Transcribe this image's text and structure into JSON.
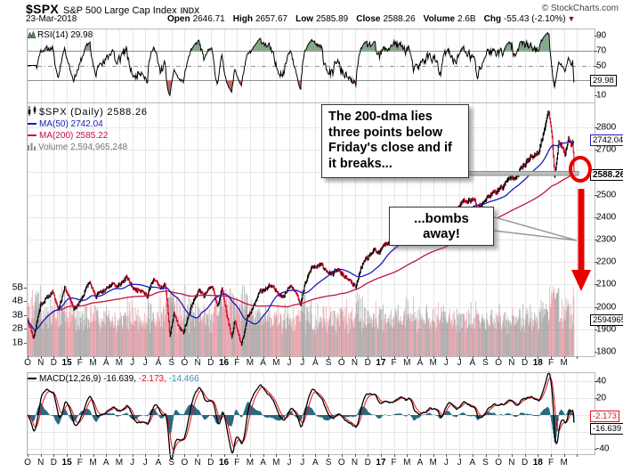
{
  "header": {
    "symbol": "$SPX",
    "name": "S&P 500 Large Cap Index",
    "exchange": "INDX",
    "source": "© StockCharts.com",
    "date": "23-Mar-2018",
    "quote": {
      "open_label": "Open",
      "open": "2646.71",
      "high_label": "High",
      "high": "2657.67",
      "low_label": "Low",
      "low": "2585.89",
      "close_label": "Close",
      "close": "2588.26",
      "volume_label": "Volume",
      "volume": "2.6B",
      "chg_label": "Chg",
      "chg": "-55.43 (-2.10%)",
      "chg_arrow": "▼"
    }
  },
  "rsi_pane": {
    "label": "RSI(14)",
    "value": "29.98",
    "value_box": "29.98",
    "ticks": [
      90,
      70,
      50,
      10
    ]
  },
  "main_pane": {
    "series_label": "$SPX (Daily) 2588.26",
    "ma50_label": "MA(50) 2742.04",
    "ma200_label": "MA(200) 2585.22",
    "volume_label": "Volume 2,594,965,248",
    "price_ticks": [
      2800,
      2700,
      2500,
      2400,
      2300,
      2200,
      2100,
      2000,
      1900,
      1800
    ],
    "volume_ticks": [
      "5B",
      "4B",
      "3B",
      "2B",
      "1B"
    ],
    "ma50_box": "2742.04",
    "close_box": "2588.26",
    "volume_box": "2594965",
    "callout1": "The 200-dma lies three points below Friday's close and if it breaks...",
    "callout2": "...bombs away!"
  },
  "macd_pane": {
    "label": "MACD(12,26,9)",
    "macd_value": "-16.639,",
    "signal_value": "-2.173,",
    "hist_value": "-14.466",
    "ticks": [
      40,
      20,
      -40
    ],
    "signal_box": "-2.173",
    "macd_box": "-16.639"
  },
  "x_axis": {
    "labels": [
      "O",
      "N",
      "D",
      "15",
      "F",
      "M",
      "A",
      "M",
      "J",
      "J",
      "A",
      "S",
      "O",
      "N",
      "D",
      "16",
      "F",
      "M",
      "A",
      "M",
      "J",
      "J",
      "A",
      "S",
      "O",
      "N",
      "D",
      "17",
      "F",
      "M",
      "A",
      "M",
      "J",
      "J",
      "A",
      "S",
      "O",
      "N",
      "D",
      "18",
      "F",
      "M"
    ],
    "year_indices": [
      3,
      15,
      27,
      39
    ]
  },
  "colors": {
    "candle_up": "#000000",
    "candle_down": "#cc0022",
    "ma50": "#1a1ab8",
    "ma200": "#c4123e",
    "volume_up": "rgba(130,130,130,0.5)",
    "volume_down": "rgba(222,105,120,0.45)",
    "rsi_line": "#000000",
    "rsi_fill_high": "#86a886",
    "rsi_fill_low": "#c96a6a",
    "macd_line": "#000000",
    "macd_signal": "#e01020",
    "macd_hist": "#286a7d",
    "grid": "#e7e7e7",
    "pane_border": "#b8b8b8",
    "marker_line": "#909090",
    "annotation_red": "#e80000",
    "level_line_fill": "#bdbdbd",
    "level_line_edge": "#8a8a8a"
  },
  "chart_data": [
    {
      "type": "line",
      "name": "RSI(14)",
      "last": 29.98,
      "range": [
        0,
        100
      ],
      "overbought": 70,
      "midline": 50,
      "oversold": 30,
      "ticks": [
        90,
        70,
        50,
        10
      ]
    },
    {
      "type": "candlestick",
      "name": "$SPX Daily with MA(50), MA(200) and volume",
      "x_span_months": 42,
      "x_start": "Oct-2014",
      "x_end": "23-Mar-2018",
      "last_close": 2588.26,
      "ma50_last": 2742.04,
      "ma200_last": 2585.22,
      "volume_last": 2594965248,
      "ylim": [
        1800,
        2900
      ],
      "price_ticks": [
        2800,
        2700,
        2500,
        2400,
        2300,
        2200,
        2100,
        2000,
        1900,
        1800
      ],
      "volume_axis_billions": [
        5,
        4,
        3,
        2,
        1
      ],
      "anchors_months_close": [
        [
          0,
          1946
        ],
        [
          0.45,
          1862
        ],
        [
          1.0,
          2012
        ],
        [
          1.5,
          2040
        ],
        [
          1.9,
          2068
        ],
        [
          2.35,
          1989
        ],
        [
          2.85,
          2090
        ],
        [
          3.1,
          2058
        ],
        [
          3.55,
          1992
        ],
        [
          4.0,
          2020
        ],
        [
          4.75,
          2115
        ],
        [
          5.2,
          2040
        ],
        [
          5.6,
          2080
        ],
        [
          5.85,
          2068
        ],
        [
          6.5,
          2108
        ],
        [
          6.85,
          2086
        ],
        [
          7.55,
          2131
        ],
        [
          8.15,
          2077
        ],
        [
          8.8,
          2077
        ],
        [
          9.15,
          2046
        ],
        [
          9.6,
          2128
        ],
        [
          10.15,
          2083
        ],
        [
          10.55,
          2096
        ],
        [
          10.87,
          1870
        ],
        [
          11.2,
          1972
        ],
        [
          11.55,
          1913
        ],
        [
          11.9,
          1884
        ],
        [
          12.5,
          1995
        ],
        [
          13.1,
          2075
        ],
        [
          13.55,
          2045
        ],
        [
          14.05,
          2102
        ],
        [
          14.5,
          2005
        ],
        [
          14.85,
          2078
        ],
        [
          15.1,
          2012
        ],
        [
          15.6,
          1859
        ],
        [
          15.85,
          1940
        ],
        [
          16.35,
          1829
        ],
        [
          16.8,
          1948
        ],
        [
          17.1,
          1978
        ],
        [
          17.8,
          2072
        ],
        [
          18.6,
          2091
        ],
        [
          19.1,
          2065
        ],
        [
          19.6,
          2047
        ],
        [
          20.05,
          2099
        ],
        [
          20.55,
          2071
        ],
        [
          20.85,
          2001
        ],
        [
          21.2,
          2099
        ],
        [
          21.7,
          2175
        ],
        [
          22.5,
          2184
        ],
        [
          23.3,
          2139
        ],
        [
          23.6,
          2168
        ],
        [
          24.3,
          2133
        ],
        [
          25.1,
          2085
        ],
        [
          25.5,
          2180
        ],
        [
          26.4,
          2247
        ],
        [
          26.9,
          2239
        ],
        [
          27.15,
          2268
        ],
        [
          27.8,
          2298
        ],
        [
          28.5,
          2351
        ],
        [
          28.9,
          2364
        ],
        [
          29.15,
          2396
        ],
        [
          29.5,
          2344
        ],
        [
          30.0,
          2358
        ],
        [
          30.8,
          2391
        ],
        [
          31.2,
          2391
        ],
        [
          31.55,
          2357
        ],
        [
          31.9,
          2412
        ],
        [
          32.2,
          2432
        ],
        [
          32.7,
          2423
        ],
        [
          33.3,
          2470
        ],
        [
          34.15,
          2475
        ],
        [
          34.4,
          2438
        ],
        [
          34.8,
          2465
        ],
        [
          35.3,
          2497
        ],
        [
          35.9,
          2519
        ],
        [
          36.3,
          2534
        ],
        [
          36.9,
          2575
        ],
        [
          37.3,
          2584
        ],
        [
          37.9,
          2627
        ],
        [
          38.4,
          2662
        ],
        [
          38.85,
          2674
        ],
        [
          39.1,
          2696
        ],
        [
          39.85,
          2873
        ],
        [
          40.1,
          2762
        ],
        [
          40.27,
          2581
        ],
        [
          40.6,
          2732
        ],
        [
          40.9,
          2714
        ],
        [
          41.1,
          2678
        ],
        [
          41.35,
          2752
        ],
        [
          41.55,
          2712
        ],
        [
          41.68,
          2752
        ],
        [
          41.75,
          2644
        ],
        [
          41.8,
          2588.26
        ]
      ]
    },
    {
      "type": "macd",
      "name": "MACD(12,26,9)",
      "params": [
        12,
        26,
        9
      ],
      "macd": -16.639,
      "signal": -2.173,
      "histogram": -14.466,
      "ylim": [
        -50,
        50
      ],
      "ticks": [
        40,
        20,
        -40
      ]
    }
  ]
}
